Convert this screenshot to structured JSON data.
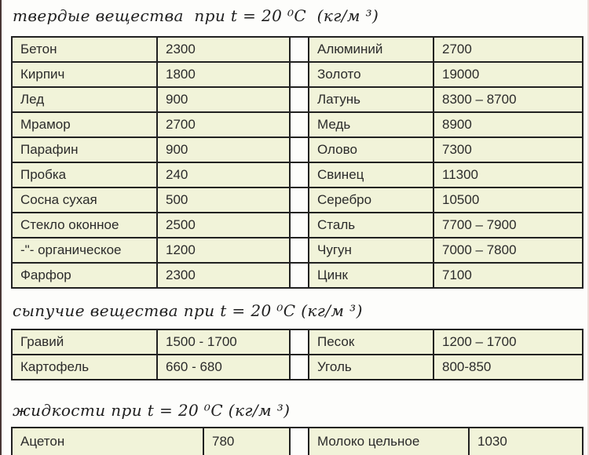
{
  "page": {
    "background": "#fdfdfb",
    "cell_background": "#f1f3d9",
    "border_color": "#212121",
    "left_edge_color": "#483634",
    "unit": "кг/м³",
    "temperature": "t = 20 ⁰С"
  },
  "sections": [
    {
      "id": "solids",
      "title": "твердые вещества  при t = 20 ⁰С  (кг/м ³)",
      "rows": [
        [
          "Бетон",
          "2300",
          "Алюминий",
          "2700"
        ],
        [
          "Кирпич",
          "1800",
          "Золото",
          "19000"
        ],
        [
          "Лед",
          "900",
          "Латунь",
          "8300 – 8700"
        ],
        [
          "Мрамор",
          "2700",
          "Медь",
          "8900"
        ],
        [
          "Парафин",
          "900",
          "Олово",
          "7300"
        ],
        [
          "Пробка",
          "240",
          "Свинец",
          "11300"
        ],
        [
          "Сосна сухая",
          "500",
          "Серебро",
          "10500"
        ],
        [
          "Стекло оконное",
          "2500",
          "Сталь",
          "7700 – 7900"
        ],
        [
          "-\"- органическое",
          "1200",
          "Чугун",
          "7000 – 7800"
        ],
        [
          "Фарфор",
          "2300",
          "Цинк",
          "7100"
        ]
      ]
    },
    {
      "id": "granular",
      "title": "сыпучие вещества при t = 20 ⁰С (кг/м ³)",
      "rows": [
        [
          "Гравий",
          "1500 - 1700",
          "Песок",
          "1200 – 1700"
        ],
        [
          "Картофель",
          "660 - 680",
          "Уголь",
          "800-850"
        ]
      ]
    },
    {
      "id": "liquids",
      "title": "жидкости при t = 20 ⁰С (кг/м ³)",
      "rows": [
        [
          "Ацетон",
          "780",
          "Молоко цельное",
          "1030"
        ]
      ]
    }
  ]
}
